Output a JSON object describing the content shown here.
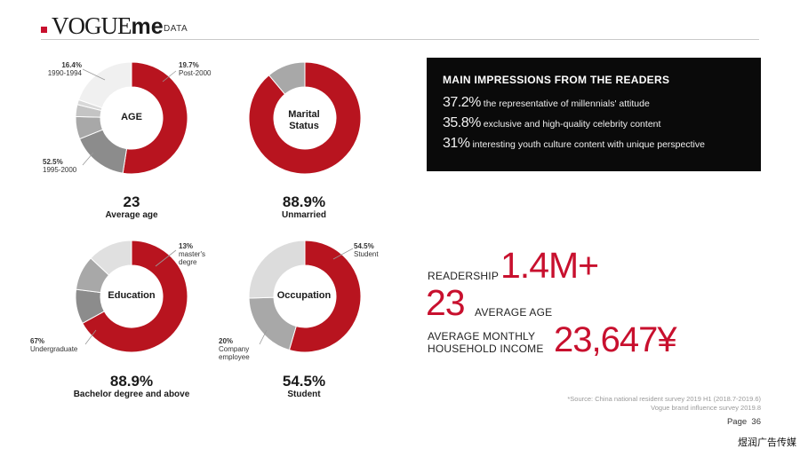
{
  "header": {
    "logo_vogue": "VOGUE",
    "logo_me": "me",
    "section": "DATA"
  },
  "chart_data": [
    {
      "type": "pie",
      "center_label": "AGE",
      "slices": [
        {
          "label": "1995-2000",
          "value": 52.5,
          "color": "#b8141f"
        },
        {
          "label": "1990-1994",
          "value": 16.4,
          "color": "#8c8c8c"
        },
        {
          "label": "",
          "value": 6.5,
          "color": "#a8a8a8"
        },
        {
          "label": "",
          "value": 3.5,
          "color": "#c4c4c4"
        },
        {
          "label": "",
          "value": 1.4,
          "color": "#d8d8d8"
        },
        {
          "label": "Post-2000",
          "value": 19.7,
          "color": "#f0f0f0"
        }
      ],
      "annotations": [
        {
          "value_text": "16.4%",
          "label": "1990-1994"
        },
        {
          "value_text": "19.7%",
          "label": "Post-2000"
        },
        {
          "value_text": "52.5%",
          "label": "1995-2000"
        }
      ],
      "headline": "23",
      "caption": "Average age"
    },
    {
      "type": "pie",
      "center_label": "Marital Status",
      "slices": [
        {
          "label": "Unmarried",
          "value": 88.9,
          "color": "#b8141f"
        },
        {
          "label": "",
          "value": 11.1,
          "color": "#a8a8a8"
        }
      ],
      "annotations": [],
      "headline": "88.9%",
      "caption": "Unmarried"
    },
    {
      "type": "pie",
      "center_label": "Education",
      "slices": [
        {
          "label": "Undergraduate",
          "value": 67,
          "color": "#b8141f"
        },
        {
          "label": "",
          "value": 10,
          "color": "#8c8c8c"
        },
        {
          "label": "",
          "value": 10,
          "color": "#a8a8a8"
        },
        {
          "label": "master's degre",
          "value": 13,
          "color": "#e0e0e0"
        }
      ],
      "annotations": [
        {
          "value_text": "13%",
          "label": "master's degre"
        },
        {
          "value_text": "67%",
          "label": "Undergraduate"
        }
      ],
      "headline": "88.9%",
      "caption": "Bachelor degree and above"
    },
    {
      "type": "pie",
      "center_label": "Occupation",
      "slices": [
        {
          "label": "Student",
          "value": 54.5,
          "color": "#b8141f"
        },
        {
          "label": "Company employee",
          "value": 20,
          "color": "#a8a8a8"
        },
        {
          "label": "",
          "value": 25.5,
          "color": "#dcdcdc"
        }
      ],
      "annotations": [
        {
          "value_text": "54.5%",
          "label": "Student"
        },
        {
          "value_text": "20%",
          "label": "Company employee"
        }
      ],
      "headline": "54.5%",
      "caption": "Student"
    }
  ],
  "impressions": {
    "title": "MAIN IMPRESSIONS FROM THE READERS",
    "rows": [
      {
        "pct": "37.2%",
        "text": "the representative of millennials' attitude"
      },
      {
        "pct": "35.8%",
        "text": "exclusive and high-quality celebrity content"
      },
      {
        "pct": "31%",
        "text": "interesting youth culture content with unique perspective"
      }
    ]
  },
  "stats": {
    "readership_label": "READERSHIP",
    "readership_value": "1.4M+",
    "age_value": "23",
    "age_label": "AVERAGE AGE",
    "income_label_1": "AVERAGE MONTHLY",
    "income_label_2": "HOUSEHOLD INCOME",
    "income_value": "23,647¥"
  },
  "footer": {
    "source_1": "*Source: China national resident survey 2019 H1 (2018.7-2019.6)",
    "source_2": "Vogue brand influence survey 2019.8",
    "page_label": "Page",
    "page_number": "36",
    "watermark": "煜润广告传媒"
  },
  "colors": {
    "accent": "#c8102e",
    "panel": "#0a0a0a"
  }
}
